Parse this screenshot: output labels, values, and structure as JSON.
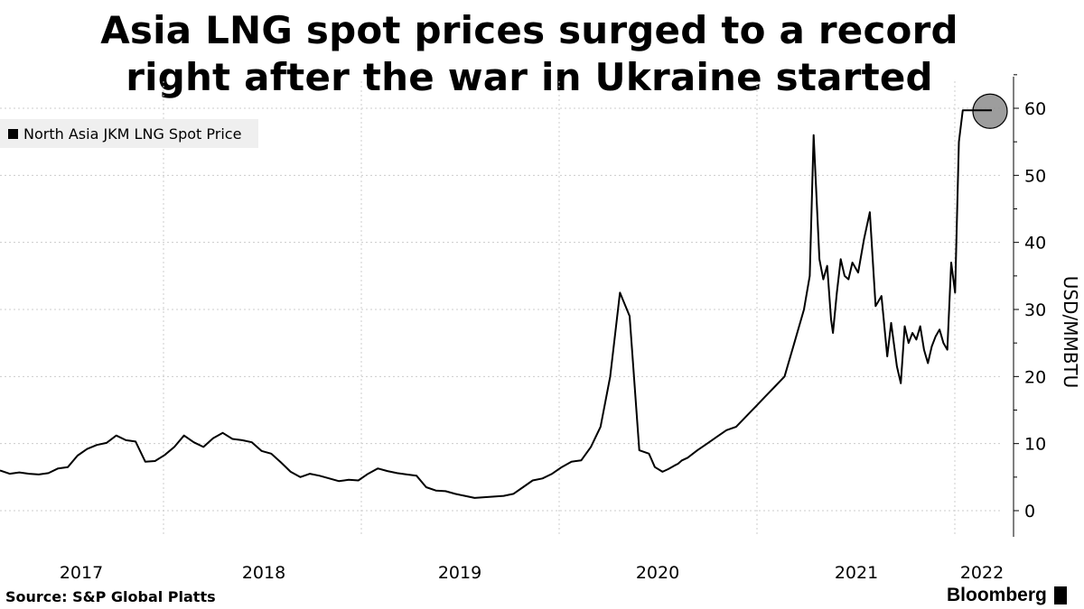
{
  "header": {
    "title_line1": "Asia LNG spot prices surged to a record",
    "title_line2": "right after the war in Ukraine started"
  },
  "footer": {
    "source": "Source: S&P Global Platts",
    "brand": "Bloomberg"
  },
  "colors": {
    "line": "#000000",
    "grid": "#cccccc",
    "highlight_fill": "#8c8c8c",
    "legend_bg": "#efefef"
  },
  "chart_data": {
    "type": "line",
    "title": "Asia LNG spot prices surged to a record right after the war in Ukraine started",
    "ylabel": "USD/MMBTU",
    "xlabel": "",
    "legend": [
      "North Asia JKM LNG Spot Price"
    ],
    "legend_position": "top-left",
    "ylim": [
      -3.5,
      65
    ],
    "xlim": [
      2016.7,
      2022.3
    ],
    "yticks": [
      0,
      10,
      20,
      30,
      40,
      50,
      60
    ],
    "xticks": [
      {
        "label": "2017",
        "value": 2016.83
      },
      {
        "label": "2018",
        "value": 2017.75
      },
      {
        "label": "2019",
        "value": 2018.75
      },
      {
        "label": "2020",
        "value": 2019.75
      },
      {
        "label": "2021",
        "value": 2020.75
      },
      {
        "label": "2022",
        "value": 2021.85
      }
    ],
    "highlight": {
      "x": 2021.82,
      "y": 59.7,
      "note": "record high marker"
    },
    "series": [
      {
        "name": "North Asia JKM LNG Spot Price",
        "x": [
          2016.7,
          2016.75,
          2016.8,
          2016.85,
          2016.9,
          2016.95,
          2017.0,
          2017.05,
          2017.1,
          2017.15,
          2017.2,
          2017.25,
          2017.3,
          2017.35,
          2017.4,
          2017.45,
          2017.5,
          2017.55,
          2017.6,
          2017.65,
          2017.7,
          2017.75,
          2017.8,
          2017.85,
          2017.9,
          2017.95,
          2018.0,
          2018.05,
          2018.1,
          2018.15,
          2018.2,
          2018.25,
          2018.3,
          2018.35,
          2018.4,
          2018.45,
          2018.5,
          2018.55,
          2018.6,
          2018.65,
          2018.7,
          2018.75,
          2018.8,
          2018.85,
          2018.9,
          2018.95,
          2019.0,
          2019.05,
          2019.1,
          2019.15,
          2019.2,
          2019.25,
          2019.3,
          2019.35,
          2019.4,
          2019.45,
          2019.5,
          2019.55,
          2019.6,
          2019.65,
          2019.7,
          2019.75,
          2019.8,
          2019.85,
          2019.9,
          2019.95,
          2020.0,
          2020.05,
          2020.08,
          2020.12,
          2020.15,
          2020.18,
          2020.2,
          2020.22,
          2020.25,
          2020.3,
          2020.35,
          2020.4,
          2020.45,
          2020.5,
          2020.55,
          2020.6,
          2020.65,
          2020.7,
          2020.75,
          2020.8,
          2020.85,
          2020.88,
          2020.9,
          2020.93,
          2020.95,
          2020.97,
          2020.99,
          2021.0,
          2021.02,
          2021.04,
          2021.06,
          2021.08,
          2021.1,
          2021.13,
          2021.16,
          2021.19,
          2021.22,
          2021.25,
          2021.28,
          2021.3,
          2021.33,
          2021.35,
          2021.37,
          2021.39,
          2021.41,
          2021.43,
          2021.45,
          2021.47,
          2021.49,
          2021.51,
          2021.53,
          2021.55,
          2021.57,
          2021.59,
          2021.61,
          2021.63,
          2021.65,
          2021.67,
          2021.69,
          2021.71,
          2021.73,
          2021.75,
          2021.77,
          2021.79,
          2021.8,
          2021.81,
          2021.82
        ],
        "values": [
          6.0,
          5.5,
          5.7,
          5.5,
          5.4,
          5.6,
          6.3,
          6.5,
          8.2,
          9.2,
          9.8,
          10.1,
          11.2,
          10.5,
          10.3,
          7.3,
          7.4,
          8.3,
          9.5,
          11.2,
          10.2,
          9.5,
          10.8,
          11.6,
          10.7,
          10.5,
          10.2,
          8.9,
          8.5,
          7.2,
          5.8,
          5.0,
          5.5,
          5.2,
          4.8,
          4.4,
          4.6,
          4.5,
          5.5,
          6.3,
          5.9,
          5.6,
          5.4,
          5.2,
          3.5,
          3.0,
          2.9,
          2.5,
          2.2,
          1.9,
          2.0,
          2.1,
          2.2,
          2.5,
          3.5,
          4.5,
          4.8,
          5.5,
          6.5,
          7.3,
          7.5,
          9.5,
          12.5,
          20.0,
          32.5,
          29.0,
          9.0,
          8.5,
          6.5,
          5.8,
          6.2,
          6.7,
          7.0,
          7.5,
          7.9,
          9.0,
          10.0,
          11.0,
          12.0,
          12.5,
          14.0,
          15.5,
          17.0,
          18.5,
          20.0,
          25.0,
          30.0,
          35.0,
          56.0,
          37.5,
          34.5,
          36.5,
          28.5,
          26.5,
          32.5,
          37.5,
          35.0,
          34.5,
          37.0,
          35.5,
          40.5,
          44.5,
          30.5,
          32.0,
          23.0,
          28.0,
          21.5,
          19.0,
          27.5,
          25.0,
          26.5,
          25.5,
          27.5,
          24.0,
          22.0,
          24.5,
          26.0,
          27.0,
          25.0,
          24.0,
          37.0,
          32.5,
          55.0,
          59.7,
          59.7,
          59.7,
          59.7,
          59.7,
          59.7,
          59.7,
          59.7,
          59.7,
          59.7
        ]
      }
    ]
  }
}
